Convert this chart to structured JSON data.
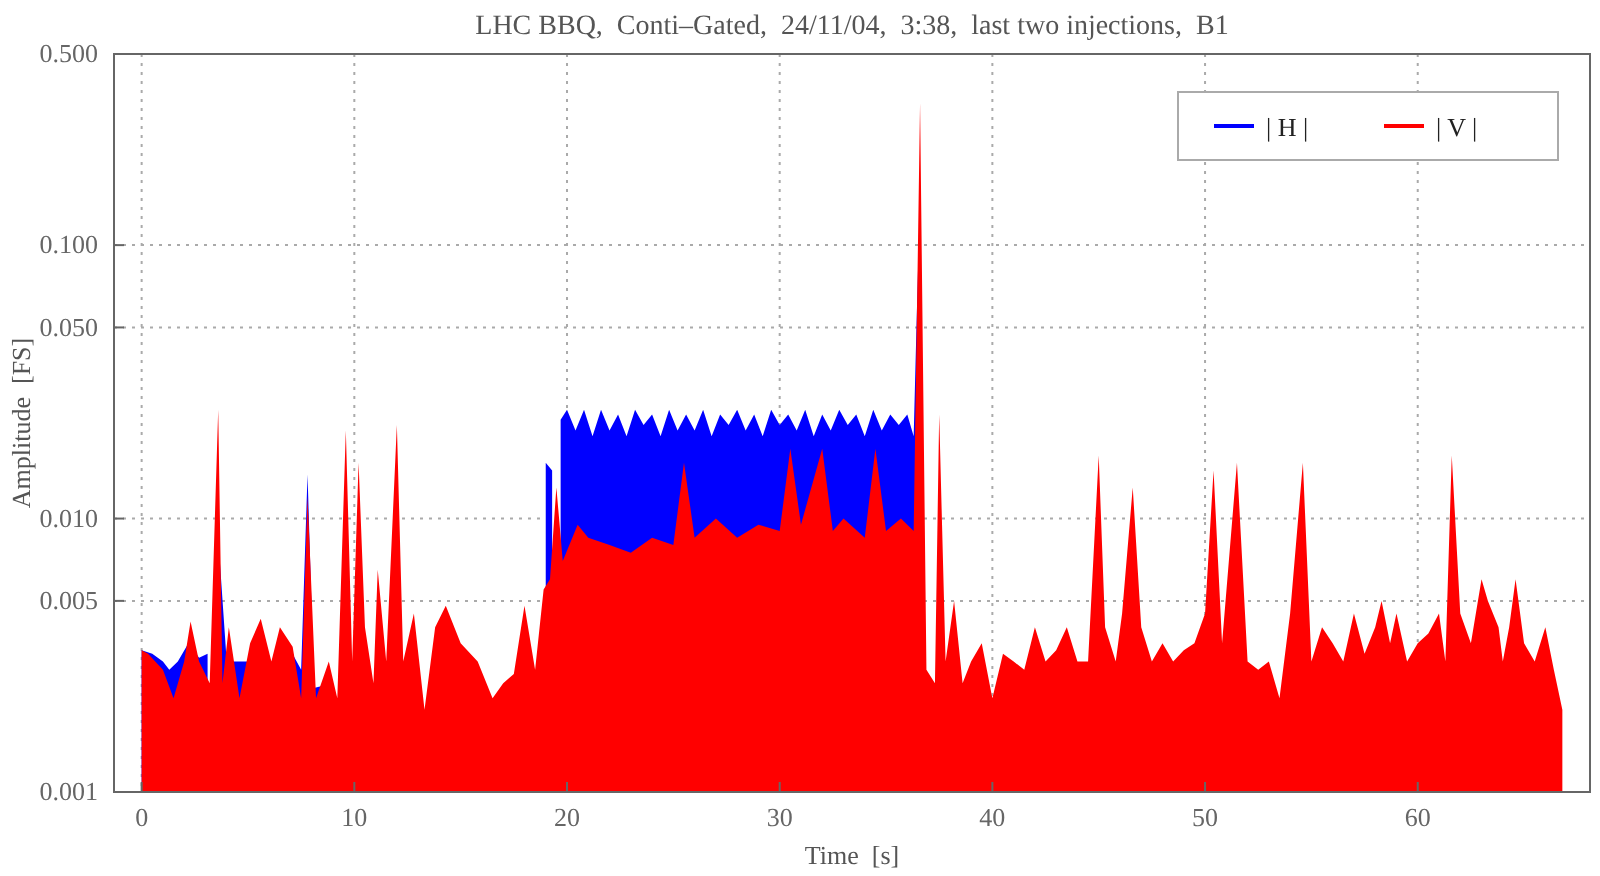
{
  "chart_data": {
    "type": "area",
    "title": "LHC BBQ,  Conti–Gated,  24/11/04,  3:38,  last two injections,  B1",
    "xlabel": "Time  [s]",
    "ylabel": "Amplitude  [FS]",
    "log": "y",
    "grid": true,
    "legend": "top right",
    "xlim": [
      -1.3,
      68.1
    ],
    "ylim": [
      0.001,
      0.5
    ],
    "xticks": [
      0,
      10,
      20,
      30,
      40,
      50,
      60
    ],
    "yticks": [
      {
        "value": 0.001,
        "label": "0.001"
      },
      {
        "value": 0.005,
        "label": "0.005"
      },
      {
        "value": 0.01,
        "label": "0.010"
      },
      {
        "value": 0.05,
        "label": "0.050"
      },
      {
        "value": 0.1,
        "label": "0.100"
      },
      {
        "value": 0.5,
        "label": "0.500"
      }
    ],
    "series": [
      {
        "name": "| H |",
        "color": "#0000ff",
        "x": [
          0,
          0.5,
          1,
          1.3,
          1.7,
          2.2,
          2.7,
          3.1,
          3.4,
          3.6,
          4,
          4.5,
          5,
          5.5,
          7,
          7.5,
          7.8,
          8.1,
          9,
          10,
          19.0,
          19.3,
          19.5,
          19.7,
          20,
          20.4,
          20.8,
          21.2,
          21.6,
          22,
          22.4,
          22.8,
          23.2,
          23.6,
          24,
          24.4,
          24.8,
          25.2,
          25.6,
          26,
          26.4,
          26.8,
          27.2,
          27.6,
          28,
          28.4,
          28.8,
          29.2,
          29.6,
          30,
          30.4,
          30.8,
          31.2,
          31.6,
          32,
          32.4,
          32.8,
          33.2,
          33.6,
          34,
          34.4,
          34.8,
          35.2,
          35.6,
          36,
          36.3,
          36.5
        ],
        "values": [
          0.0033,
          0.0032,
          0.003,
          0.0028,
          0.003,
          0.0035,
          0.0031,
          0.0032,
          null,
          0.0085,
          0.003,
          0.003,
          0.003,
          null,
          0.0033,
          0.0028,
          0.0145,
          0.0024,
          0.0025,
          null,
          0.016,
          0.015,
          null,
          0.023,
          0.025,
          0.021,
          0.025,
          0.02,
          0.025,
          0.021,
          0.024,
          0.02,
          0.025,
          0.022,
          0.024,
          0.02,
          0.025,
          0.021,
          0.024,
          0.021,
          0.025,
          0.02,
          0.024,
          0.022,
          0.025,
          0.021,
          0.024,
          0.02,
          0.025,
          0.022,
          0.024,
          0.021,
          0.025,
          0.02,
          0.024,
          0.021,
          0.025,
          0.022,
          0.024,
          0.02,
          0.025,
          0.021,
          0.024,
          0.022,
          0.024,
          0.02,
          0.081
        ]
      },
      {
        "name": "| V |",
        "color": "#ff0000",
        "x": [
          0,
          0.3,
          1,
          1.5,
          2,
          2.3,
          2.7,
          3.2,
          3.6,
          3.8,
          4.1,
          4.6,
          5.1,
          5.6,
          6.1,
          6.5,
          7.1,
          7.5,
          7.8,
          8.2,
          8.8,
          9.2,
          9.6,
          9.9,
          10.2,
          10.5,
          10.9,
          11.1,
          11.5,
          12,
          12.3,
          12.8,
          13.3,
          13.8,
          14.3,
          15,
          15.8,
          16.5,
          17,
          17.5,
          18,
          18.5,
          18.9,
          19.2,
          19.5,
          19.8,
          20.5,
          21,
          22,
          23,
          24,
          25,
          25.5,
          26,
          27,
          28,
          29,
          30,
          30.5,
          31,
          32,
          32.5,
          33,
          34,
          34.5,
          35,
          35.7,
          36.3,
          36.6,
          36.9,
          37.3,
          37.5,
          37.8,
          38.2,
          38.6,
          39,
          39.5,
          40,
          40.5,
          41,
          41.5,
          42,
          42.5,
          43,
          43.5,
          44,
          44.5,
          45,
          45.3,
          45.8,
          46.1,
          46.6,
          47,
          47.5,
          48,
          48.5,
          49,
          49.5,
          50,
          50.4,
          50.8,
          51.5,
          52,
          52.5,
          53,
          53.5,
          54,
          54.6,
          55,
          55.5,
          56,
          56.5,
          57,
          57.5,
          58,
          58.3,
          58.7,
          59,
          59.5,
          60,
          60.5,
          61,
          61.3,
          61.6,
          62,
          62.5,
          63,
          63.3,
          63.8,
          64,
          64.3,
          64.6,
          65,
          65.5,
          66,
          66.4,
          66.8
        ],
        "values": [
          0.0033,
          0.0032,
          0.0028,
          0.0022,
          0.003,
          0.0042,
          0.003,
          0.0025,
          0.025,
          0.0025,
          0.004,
          0.0022,
          0.0035,
          0.0043,
          0.003,
          0.004,
          0.0034,
          0.0022,
          0.012,
          0.0022,
          0.003,
          0.0022,
          0.021,
          0.003,
          0.016,
          0.004,
          0.0025,
          0.0065,
          0.003,
          0.022,
          0.003,
          0.0045,
          0.002,
          0.004,
          0.0048,
          0.0035,
          0.003,
          0.0022,
          0.0025,
          0.0027,
          0.0048,
          0.0028,
          0.0055,
          0.006,
          0.013,
          0.007,
          0.0095,
          0.0085,
          0.008,
          0.0075,
          0.0085,
          0.008,
          0.016,
          0.0085,
          0.01,
          0.0085,
          0.0095,
          0.009,
          0.018,
          0.0095,
          0.018,
          0.009,
          0.01,
          0.0085,
          0.018,
          0.009,
          0.01,
          0.009,
          0.33,
          0.0028,
          0.0025,
          0.024,
          0.003,
          0.005,
          0.0025,
          0.003,
          0.0035,
          0.0022,
          0.0032,
          0.003,
          0.0028,
          0.004,
          0.003,
          0.0033,
          0.004,
          0.003,
          0.003,
          0.017,
          0.004,
          0.003,
          0.0045,
          0.013,
          0.004,
          0.003,
          0.0035,
          0.003,
          0.0033,
          0.0035,
          0.0045,
          0.015,
          0.0035,
          0.016,
          0.003,
          0.0028,
          0.003,
          0.0022,
          0.0045,
          0.016,
          0.003,
          0.004,
          0.0035,
          0.003,
          0.0045,
          0.0032,
          0.004,
          0.005,
          0.0035,
          0.0045,
          0.003,
          0.0035,
          0.0038,
          0.0045,
          0.003,
          0.017,
          0.0045,
          0.0035,
          0.006,
          0.005,
          0.004,
          0.003,
          0.004,
          0.006,
          0.0035,
          0.003,
          0.004,
          0.0028,
          0.002
        ]
      }
    ]
  }
}
